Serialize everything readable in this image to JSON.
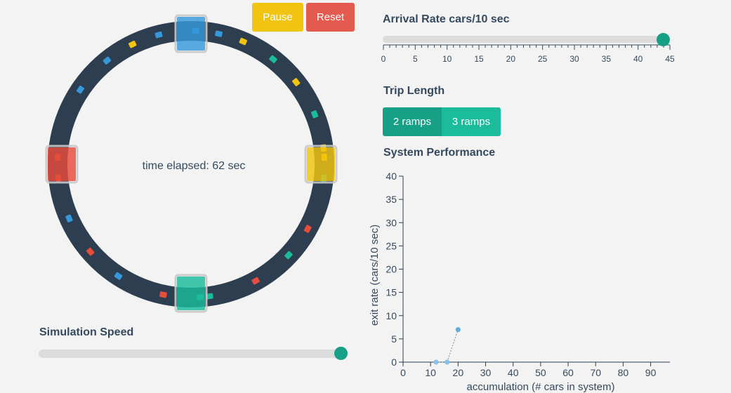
{
  "controls": {
    "pause_label": "Pause",
    "reset_label": "Reset"
  },
  "ring": {
    "time_label": "time elapsed: 62 sec"
  },
  "simulation_speed": {
    "label": "Simulation Speed",
    "value_fraction": 1.0
  },
  "arrival_rate": {
    "label": "Arrival Rate cars/10 sec",
    "value": 44,
    "min": 0,
    "max": 45,
    "tick_labels": [
      "0",
      "5",
      "10",
      "15",
      "20",
      "25",
      "30",
      "35",
      "40",
      "45"
    ]
  },
  "trip_length": {
    "label": "Trip Length",
    "options": [
      "2 ramps",
      "3 ramps"
    ],
    "selected": "2 ramps"
  },
  "colors": {
    "accent": "#16a085",
    "pause": "#f1c40f",
    "reset": "#e74c3c",
    "ramp_blue": "#3498db",
    "ramp_yellow": "#f1c40f",
    "ramp_red": "#e74c3c",
    "ramp_green": "#1abc9c",
    "road": "#2c3e50"
  },
  "chart_data": {
    "type": "scatter",
    "title": "System Performance",
    "xlabel": "accumulation (# cars in system)",
    "ylabel": "exit rate (cars/10 sec)",
    "xlim": [
      0,
      97
    ],
    "ylim": [
      0,
      40
    ],
    "x_ticks": [
      "0",
      "10",
      "20",
      "30",
      "40",
      "50",
      "60",
      "70",
      "80",
      "90"
    ],
    "y_ticks": [
      "0",
      "5",
      "10",
      "15",
      "20",
      "25",
      "30",
      "35",
      "40"
    ],
    "points": [
      {
        "x": 12,
        "y": 0
      },
      {
        "x": 16,
        "y": 0
      },
      {
        "x": 20,
        "y": 7
      }
    ]
  }
}
